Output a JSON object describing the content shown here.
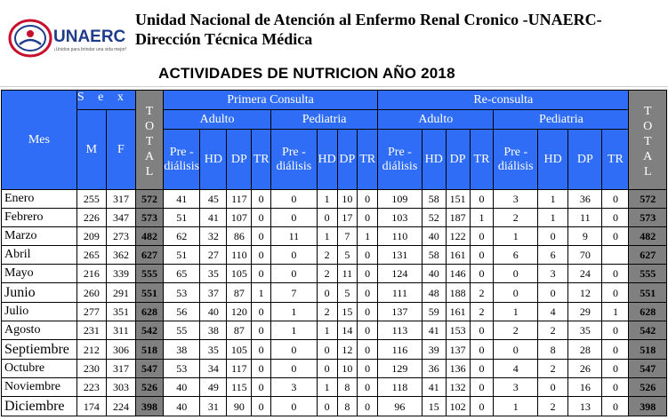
{
  "header": {
    "org_title": "Unidad Nacional de Atención al Enfermo Renal Cronico -UNAERC-",
    "org_subtitle": "Dirección Técnica Médica",
    "doc_title": "ACTIVIDADES DE NUTRICION  AÑO 2018",
    "logo_text": "UNAERC",
    "logo_tagline": "¡Unidos para brindar una vida mejor!",
    "colors": {
      "header_blue": "#2f6df6",
      "total_gray": "#808080",
      "logo_red": "#c8102e",
      "logo_blue": "#1f3c8a"
    }
  },
  "columns": {
    "mes": "Mes",
    "sexo": "S e x o",
    "m": "M",
    "f": "F",
    "total_left": "T O T A L",
    "total_right": "T O T A L",
    "primera": "Primera Consulta",
    "reconsulta": "Re-consulta",
    "adulto": "Adulto",
    "pediatria": "Pediatria",
    "prediálisis_1": "Pre -",
    "prediálisis_2": "diálisis",
    "hd": "HD",
    "dp": "DP",
    "tr": "TR"
  },
  "rows": [
    {
      "mes": "Enero",
      "big": false,
      "m": "255",
      "f": "317",
      "total": "572",
      "pc_a_pre": "41",
      "pc_a_hd": "45",
      "pc_a_dp": "117",
      "pc_a_tr": "0",
      "pc_p_pre": "0",
      "pc_p_hd": "1",
      "pc_p_dp": "10",
      "pc_p_tr": "0",
      "rc_a_pre": "109",
      "rc_a_hd": "58",
      "rc_a_dp": "151",
      "rc_a_tr": "0",
      "rc_p_pre": "3",
      "rc_p_hd": "1",
      "rc_p_dp": "36",
      "rc_p_tr": "0",
      "total2": "572"
    },
    {
      "mes": "Febrero",
      "big": false,
      "m": "226",
      "f": "347",
      "total": "573",
      "pc_a_pre": "51",
      "pc_a_hd": "41",
      "pc_a_dp": "107",
      "pc_a_tr": "0",
      "pc_p_pre": "0",
      "pc_p_hd": "0",
      "pc_p_dp": "17",
      "pc_p_tr": "0",
      "rc_a_pre": "103",
      "rc_a_hd": "52",
      "rc_a_dp": "187",
      "rc_a_tr": "1",
      "rc_p_pre": "2",
      "rc_p_hd": "1",
      "rc_p_dp": "11",
      "rc_p_tr": "0",
      "total2": "573"
    },
    {
      "mes": "Marzo",
      "big": false,
      "m": "209",
      "f": "273",
      "total": "482",
      "pc_a_pre": "62",
      "pc_a_hd": "32",
      "pc_a_dp": "86",
      "pc_a_tr": "0",
      "pc_p_pre": "11",
      "pc_p_hd": "1",
      "pc_p_dp": "7",
      "pc_p_tr": "1",
      "rc_a_pre": "110",
      "rc_a_hd": "40",
      "rc_a_dp": "122",
      "rc_a_tr": "0",
      "rc_p_pre": "1",
      "rc_p_hd": "0",
      "rc_p_dp": "9",
      "rc_p_tr": "0",
      "total2": "482"
    },
    {
      "mes": "Abril",
      "big": false,
      "m": "265",
      "f": "362",
      "total": "627",
      "pc_a_pre": "51",
      "pc_a_hd": "27",
      "pc_a_dp": "110",
      "pc_a_tr": "0",
      "pc_p_pre": "0",
      "pc_p_hd": "2",
      "pc_p_dp": "5",
      "pc_p_tr": "0",
      "rc_a_pre": "131",
      "rc_a_hd": "58",
      "rc_a_dp": "161",
      "rc_a_tr": "0",
      "rc_p_pre": "6",
      "rc_p_hd": "6",
      "rc_p_dp": "70",
      "rc_p_tr": "",
      "total2": "627"
    },
    {
      "mes": "Mayo",
      "big": false,
      "m": "216",
      "f": "339",
      "total": "555",
      "pc_a_pre": "65",
      "pc_a_hd": "35",
      "pc_a_dp": "105",
      "pc_a_tr": "0",
      "pc_p_pre": "0",
      "pc_p_hd": "2",
      "pc_p_dp": "11",
      "pc_p_tr": "0",
      "rc_a_pre": "124",
      "rc_a_hd": "40",
      "rc_a_dp": "146",
      "rc_a_tr": "0",
      "rc_p_pre": "0",
      "rc_p_hd": "3",
      "rc_p_dp": "24",
      "rc_p_tr": "0",
      "total2": "555"
    },
    {
      "mes": "Junio",
      "big": true,
      "m": "260",
      "f": "291",
      "total": "551",
      "pc_a_pre": "53",
      "pc_a_hd": "37",
      "pc_a_dp": "87",
      "pc_a_tr": "1",
      "pc_p_pre": "7",
      "pc_p_hd": "0",
      "pc_p_dp": "5",
      "pc_p_tr": "0",
      "rc_a_pre": "111",
      "rc_a_hd": "48",
      "rc_a_dp": "188",
      "rc_a_tr": "2",
      "rc_p_pre": "0",
      "rc_p_hd": "0",
      "rc_p_dp": "12",
      "rc_p_tr": "0",
      "total2": "551"
    },
    {
      "mes": "Julio",
      "big": false,
      "m": "277",
      "f": "351",
      "total": "628",
      "pc_a_pre": "56",
      "pc_a_hd": "40",
      "pc_a_dp": "120",
      "pc_a_tr": "0",
      "pc_p_pre": "1",
      "pc_p_hd": "2",
      "pc_p_dp": "15",
      "pc_p_tr": "0",
      "rc_a_pre": "137",
      "rc_a_hd": "59",
      "rc_a_dp": "161",
      "rc_a_tr": "2",
      "rc_p_pre": "1",
      "rc_p_hd": "4",
      "rc_p_dp": "29",
      "rc_p_tr": "1",
      "total2": "628"
    },
    {
      "mes": "Agosto",
      "big": false,
      "m": "231",
      "f": "311",
      "total": "542",
      "pc_a_pre": "55",
      "pc_a_hd": "38",
      "pc_a_dp": "87",
      "pc_a_tr": "0",
      "pc_p_pre": "1",
      "pc_p_hd": "1",
      "pc_p_dp": "14",
      "pc_p_tr": "0",
      "rc_a_pre": "113",
      "rc_a_hd": "41",
      "rc_a_dp": "153",
      "rc_a_tr": "0",
      "rc_p_pre": "2",
      "rc_p_hd": "2",
      "rc_p_dp": "35",
      "rc_p_tr": "0",
      "total2": "542"
    },
    {
      "mes": "Septiembre",
      "big": true,
      "m": "212",
      "f": "306",
      "total": "518",
      "pc_a_pre": "38",
      "pc_a_hd": "35",
      "pc_a_dp": "105",
      "pc_a_tr": "0",
      "pc_p_pre": "0",
      "pc_p_hd": "0",
      "pc_p_dp": "12",
      "pc_p_tr": "0",
      "rc_a_pre": "116",
      "rc_a_hd": "39",
      "rc_a_dp": "137",
      "rc_a_tr": "0",
      "rc_p_pre": "0",
      "rc_p_hd": "8",
      "rc_p_dp": "28",
      "rc_p_tr": "0",
      "total2": "518"
    },
    {
      "mes": "Octubre",
      "big": false,
      "m": "230",
      "f": "317",
      "total": "547",
      "pc_a_pre": "53",
      "pc_a_hd": "34",
      "pc_a_dp": "117",
      "pc_a_tr": "0",
      "pc_p_pre": "0",
      "pc_p_hd": "0",
      "pc_p_dp": "10",
      "pc_p_tr": "0",
      "rc_a_pre": "129",
      "rc_a_hd": "36",
      "rc_a_dp": "136",
      "rc_a_tr": "0",
      "rc_p_pre": "4",
      "rc_p_hd": "2",
      "rc_p_dp": "26",
      "rc_p_tr": "0",
      "total2": "547"
    },
    {
      "mes": "Noviembre",
      "big": false,
      "m": "223",
      "f": "303",
      "total": "526",
      "pc_a_pre": "40",
      "pc_a_hd": "49",
      "pc_a_dp": "115",
      "pc_a_tr": "0",
      "pc_p_pre": "3",
      "pc_p_hd": "1",
      "pc_p_dp": "8",
      "pc_p_tr": "0",
      "rc_a_pre": "118",
      "rc_a_hd": "41",
      "rc_a_dp": "132",
      "rc_a_tr": "0",
      "rc_p_pre": "3",
      "rc_p_hd": "0",
      "rc_p_dp": "16",
      "rc_p_tr": "0",
      "total2": "526"
    },
    {
      "mes": "Diciembre",
      "big": true,
      "m": "174",
      "f": "224",
      "total": "398",
      "pc_a_pre": "40",
      "pc_a_hd": "31",
      "pc_a_dp": "90",
      "pc_a_tr": "0",
      "pc_p_pre": "0",
      "pc_p_hd": "0",
      "pc_p_dp": "8",
      "pc_p_tr": "0",
      "rc_a_pre": "96",
      "rc_a_hd": "15",
      "rc_a_dp": "102",
      "rc_a_tr": "0",
      "rc_p_pre": "1",
      "rc_p_hd": "2",
      "rc_p_dp": "13",
      "rc_p_tr": "0",
      "total2": "398"
    }
  ]
}
